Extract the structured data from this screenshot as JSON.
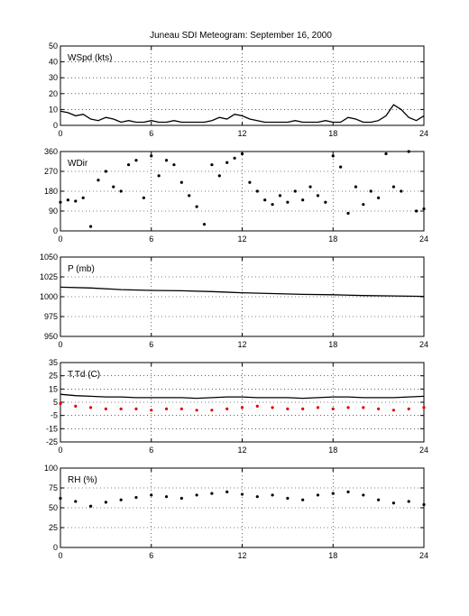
{
  "figure": {
    "title": "Juneau SDI Meteogram: September 16, 2000",
    "x_ticks": [
      "0",
      "6",
      "12",
      "18",
      "24"
    ]
  },
  "chart_data": [
    {
      "type": "line",
      "label": "WSpd (kts)",
      "xlim": [
        0,
        24
      ],
      "ylim": [
        0,
        50
      ],
      "yticks": [
        0,
        10,
        20,
        30,
        40,
        50
      ],
      "ytick_labels": [
        "0",
        "10",
        "20",
        "30",
        "40",
        "50"
      ],
      "grid": true,
      "series": [
        {
          "color": "#000000",
          "marker": "line",
          "x": [
            0,
            0.5,
            1,
            1.5,
            2,
            2.5,
            3,
            3.5,
            4,
            4.5,
            5,
            5.5,
            6,
            6.5,
            7,
            7.5,
            8,
            8.5,
            9,
            9.5,
            10,
            10.5,
            11,
            11.5,
            12,
            12.5,
            13,
            13.5,
            14,
            14.5,
            15,
            15.5,
            16,
            16.5,
            17,
            17.5,
            18,
            18.5,
            19,
            19.5,
            20,
            20.5,
            21,
            21.5,
            22,
            22.5,
            23,
            23.5,
            24
          ],
          "y": [
            9,
            8,
            6,
            7,
            4,
            3,
            5,
            4,
            2,
            3,
            2,
            2,
            3,
            2,
            2,
            3,
            2,
            2,
            2,
            2,
            3,
            5,
            4,
            7,
            6,
            4,
            3,
            2,
            2,
            2,
            2,
            3,
            2,
            2,
            2,
            3,
            2,
            2,
            5,
            4,
            2,
            2,
            3,
            6,
            13,
            10,
            5,
            3,
            6
          ]
        }
      ]
    },
    {
      "type": "scatter",
      "label": "WDir",
      "xlim": [
        0,
        24
      ],
      "ylim": [
        0,
        360
      ],
      "yticks": [
        0,
        90,
        180,
        270,
        360
      ],
      "ytick_labels": [
        "0",
        "90",
        "180",
        "270",
        "360"
      ],
      "grid": true,
      "series": [
        {
          "color": "#000000",
          "marker": "dot",
          "x": [
            0,
            0.5,
            1,
            1.5,
            2,
            2.5,
            3,
            3.5,
            4,
            4.5,
            5,
            5.5,
            6,
            6.5,
            7,
            7.5,
            8,
            8.5,
            9,
            9.5,
            10,
            10.5,
            11,
            11.5,
            12,
            12.5,
            13,
            13.5,
            14,
            14.5,
            15,
            15.5,
            16,
            16.5,
            17,
            17.5,
            18,
            18.5,
            19,
            19.5,
            20,
            20.5,
            21,
            21.5,
            22,
            22.5,
            23,
            23.5,
            24
          ],
          "y": [
            130,
            140,
            135,
            150,
            20,
            230,
            270,
            200,
            180,
            300,
            320,
            150,
            340,
            250,
            320,
            300,
            220,
            160,
            110,
            30,
            300,
            250,
            310,
            330,
            350,
            220,
            180,
            140,
            120,
            160,
            130,
            180,
            140,
            200,
            160,
            130,
            340,
            290,
            80,
            200,
            120,
            180,
            150,
            350,
            200,
            180,
            360,
            90,
            100
          ]
        }
      ]
    },
    {
      "type": "line",
      "label": "P (mb)",
      "xlim": [
        0,
        24
      ],
      "ylim": [
        950,
        1050
      ],
      "yticks": [
        950,
        975,
        1000,
        1025,
        1050
      ],
      "ytick_labels": [
        "950",
        "975",
        "1000",
        "1025",
        "1050"
      ],
      "grid": true,
      "series": [
        {
          "color": "#000000",
          "marker": "line",
          "x": [
            0,
            2,
            4,
            6,
            8,
            10,
            12,
            14,
            16,
            18,
            20,
            22,
            24
          ],
          "y": [
            1012,
            1011,
            1009,
            1008,
            1007.5,
            1006.5,
            1005,
            1004,
            1003,
            1002.5,
            1001.5,
            1001,
            1000.5
          ]
        }
      ]
    },
    {
      "type": "line",
      "label": "T,Td (C)",
      "xlim": [
        0,
        24
      ],
      "ylim": [
        -25,
        35
      ],
      "yticks": [
        -25,
        -15,
        -5,
        5,
        15,
        25,
        35
      ],
      "ytick_labels": [
        "-25",
        "-15",
        "-5",
        "5",
        "15",
        "25",
        "35"
      ],
      "grid": true,
      "series": [
        {
          "color": "#000000",
          "marker": "line",
          "x": [
            0,
            1,
            2,
            3,
            4,
            5,
            6,
            7,
            8,
            9,
            10,
            11,
            12,
            13,
            14,
            15,
            16,
            17,
            18,
            19,
            20,
            21,
            22,
            23,
            24
          ],
          "y": [
            11,
            10,
            9.5,
            9,
            9,
            8.5,
            8.5,
            8.5,
            8.5,
            8,
            8.5,
            9,
            9,
            8.5,
            8.5,
            8.5,
            8,
            8.5,
            9,
            9,
            8.5,
            8.5,
            8.5,
            9,
            9.5
          ]
        },
        {
          "color": "#e00000",
          "marker": "dot",
          "x": [
            0,
            1,
            2,
            3,
            4,
            5,
            6,
            7,
            8,
            9,
            10,
            11,
            12,
            13,
            14,
            15,
            16,
            17,
            18,
            19,
            20,
            21,
            22,
            23,
            24
          ],
          "y": [
            4,
            2,
            1,
            0,
            0,
            0,
            -1,
            0,
            0,
            -1,
            -1,
            0,
            1,
            2,
            1,
            0,
            0,
            1,
            0,
            1,
            1,
            0,
            -1,
            0,
            1
          ]
        }
      ]
    },
    {
      "type": "scatter",
      "label": "RH (%)",
      "xlim": [
        0,
        24
      ],
      "ylim": [
        0,
        100
      ],
      "yticks": [
        0,
        25,
        50,
        75,
        100
      ],
      "ytick_labels": [
        "0",
        "25",
        "50",
        "75",
        "100"
      ],
      "grid": true,
      "series": [
        {
          "color": "#000000",
          "marker": "dot",
          "x": [
            0,
            1,
            2,
            3,
            4,
            5,
            6,
            7,
            8,
            9,
            10,
            11,
            12,
            13,
            14,
            15,
            16,
            17,
            18,
            19,
            20,
            21,
            22,
            23,
            24
          ],
          "y": [
            62,
            58,
            52,
            57,
            60,
            63,
            66,
            64,
            62,
            66,
            68,
            70,
            67,
            64,
            66,
            62,
            60,
            66,
            68,
            70,
            66,
            60,
            56,
            58,
            54
          ]
        }
      ]
    }
  ]
}
